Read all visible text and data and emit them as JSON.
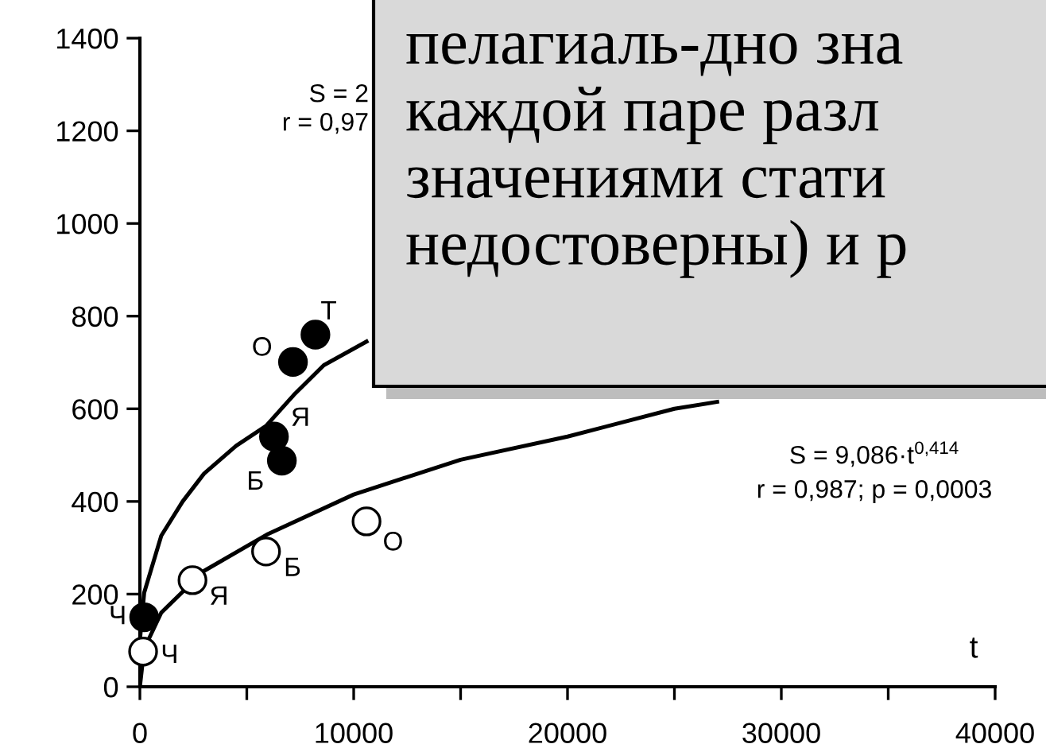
{
  "chart_data": {
    "type": "scatter",
    "xlabel": "t",
    "xlim": [
      0,
      40000
    ],
    "ylim": [
      0,
      1400
    ],
    "xticks": [
      0,
      {
        "value": 5000,
        "label": null
      },
      10000,
      {
        "value": 15000,
        "label": null
      },
      20000,
      {
        "value": 25000,
        "label": null
      },
      30000,
      {
        "value": 35000,
        "label": null
      },
      40000
    ],
    "yticks": [
      0,
      200,
      400,
      600,
      800,
      1000,
      1200,
      1400
    ],
    "grid": false,
    "series": [
      {
        "type": "line",
        "marker": "none",
        "color": "#000000",
        "x": [
          0,
          200,
          1000,
          2000,
          3000,
          4500,
          5900,
          7200,
          8600,
          10600
        ],
        "values": [
          100,
          203,
          326,
          400,
          460,
          520,
          563,
          630,
          694,
          745
        ]
      },
      {
        "type": "line",
        "marker": "none",
        "color": "#000000",
        "x": [
          0,
          200,
          1000,
          3000,
          6000,
          10000,
          15000,
          20000,
          25000,
          27000
        ],
        "values": [
          0,
          82,
          160,
          250,
          330,
          415,
          490,
          540,
          600,
          615
        ]
      },
      {
        "marker": "circle",
        "color": "#000000",
        "x": [
          200,
          6270,
          6640,
          7160,
          8210
        ],
        "values": [
          150,
          540,
          488,
          701,
          760
        ],
        "value_labels": [
          "Ч",
          "Я",
          "Б",
          "О",
          "Т"
        ]
      },
      {
        "marker": "circle",
        "color": "#ffffff",
        "x": [
          150,
          2460,
          5900,
          10600
        ],
        "values": [
          76,
          230,
          292,
          357
        ],
        "value_labels": [
          "Ч",
          "Я",
          "Б",
          "О"
        ]
      }
    ],
    "annotations": [
      "S = 2",
      "r = 0,97",
      "S = 9,086·t$^{0,414}$",
      "r = 0,987; p = 0,0003",
      "пелагиаль-дно зна\nкаждой паре разл\nзначениями стати\nнедостоверны) и р"
    ]
  }
}
